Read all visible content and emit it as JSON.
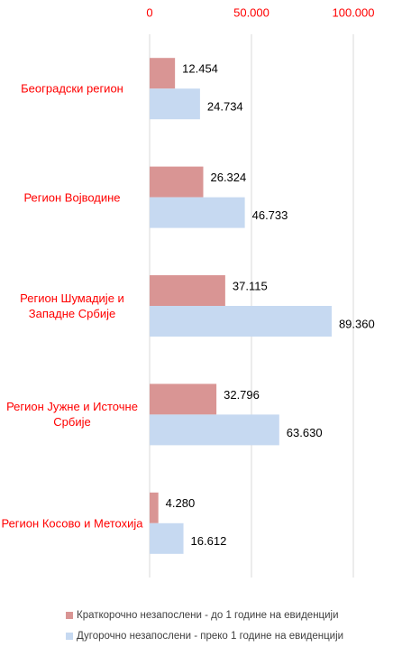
{
  "chart_data": {
    "type": "bar",
    "orientation": "horizontal",
    "categories": [
      "Београдски регион",
      "Регион Војводине",
      "Регион Шумадије и Западне Србије",
      "Регион Јужне и Источне Србије",
      "Регион Косово и Метохија"
    ],
    "series": [
      {
        "name": "Краткорочно незапослени - до 1 године на евиденцији",
        "color": "#d99594",
        "values": [
          12454,
          26324,
          37115,
          32796,
          4280
        ],
        "value_labels": [
          "12.454",
          "26.324",
          "37.115",
          "32.796",
          "4.280"
        ]
      },
      {
        "name": "Дугорочно незапослени - преко 1 године на евиденцији",
        "color": "#c6d9f1",
        "values": [
          24734,
          46733,
          89360,
          63630,
          16612
        ],
        "value_labels": [
          "24.734",
          "46.733",
          "89.360",
          "63.630",
          "16.612"
        ]
      }
    ],
    "xlim": [
      0,
      100000
    ],
    "xticks": [
      0,
      {
        "value": 50000,
        "label": "50.000"
      },
      {
        "value": 100000,
        "label": "100.000"
      }
    ],
    "tick_color": "#ff0000",
    "category_color": "#ff0000",
    "grid": true,
    "legend": "bottom"
  }
}
